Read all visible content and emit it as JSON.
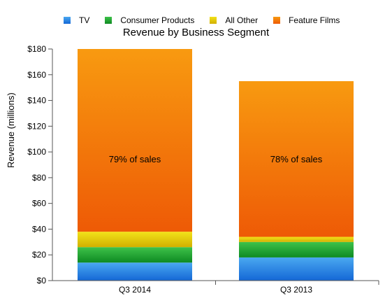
{
  "chart_data": {
    "type": "bar",
    "stacked": true,
    "title": "Revenue by Business Segment",
    "xlabel": "",
    "ylabel": "Revenue (millions)",
    "ylim": [
      0,
      180
    ],
    "yticks": [
      0,
      20,
      40,
      60,
      80,
      100,
      120,
      140,
      160,
      180
    ],
    "ytick_labels": [
      "$0",
      "$20",
      "$40",
      "$60",
      "$80",
      "$100",
      "$120",
      "$140",
      "$160",
      "$180"
    ],
    "categories": [
      "Q3 2014",
      "Q3 2013"
    ],
    "series": [
      {
        "name": "TV",
        "values": [
          14,
          18
        ],
        "color_top": "#4aa8f0",
        "color_bottom": "#1467d6"
      },
      {
        "name": "Consumer Products",
        "values": [
          12,
          12
        ],
        "color_top": "#3ec24a",
        "color_bottom": "#0e8a22"
      },
      {
        "name": "All Other",
        "values": [
          12,
          4
        ],
        "color_top": "#f2e21a",
        "color_bottom": "#d2b000"
      },
      {
        "name": "Feature Films",
        "values": [
          142,
          121
        ],
        "color_top": "#f89a10",
        "color_bottom": "#ee5a06"
      }
    ],
    "annotations": [
      "79% of sales",
      "78% of sales"
    ],
    "legend_position": "top",
    "grid": false
  }
}
